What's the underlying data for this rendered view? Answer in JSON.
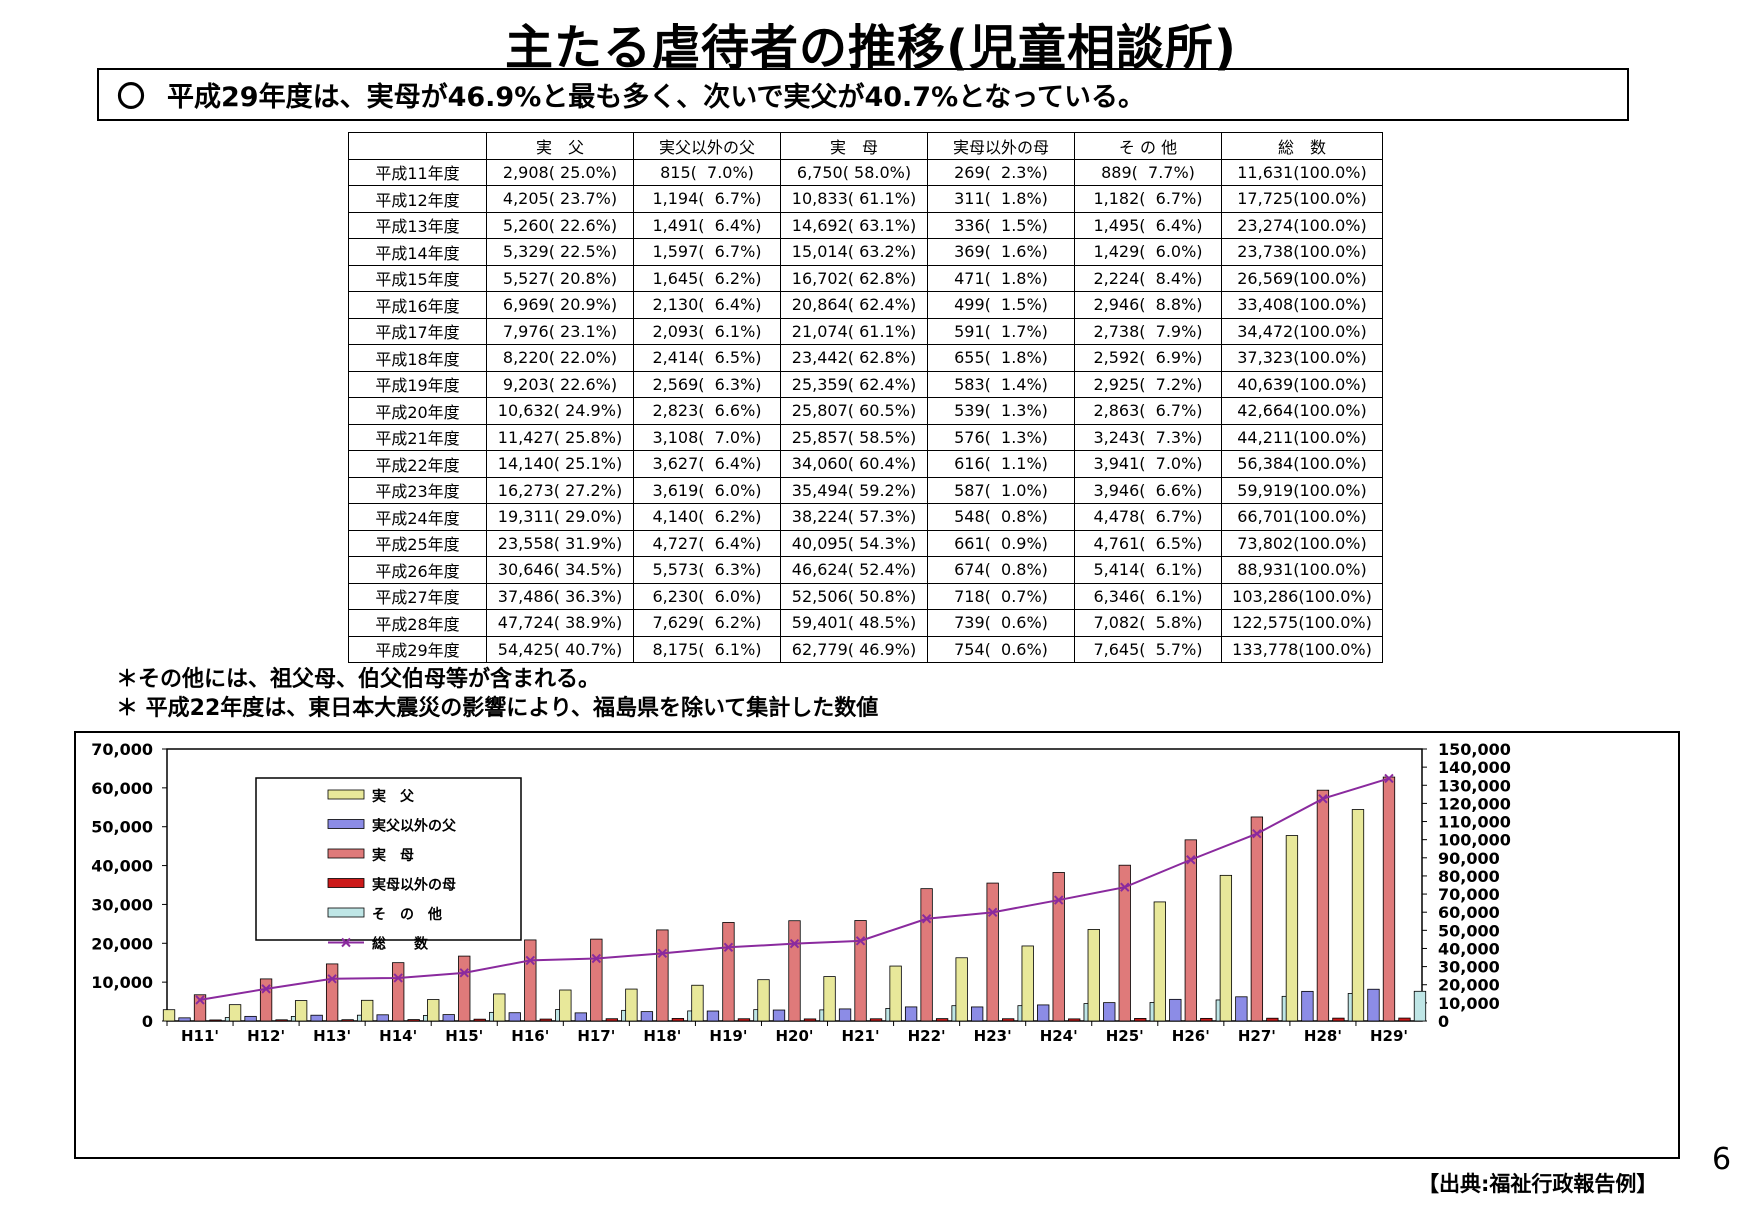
{
  "title": "主たる虐待者の推移(児童相談所)",
  "summary": {
    "bullet": "〇",
    "text": "平成29年度は、実母が46.9%と最も多く、次いで実父が40.7%となっている。"
  },
  "table": {
    "headers": [
      "",
      "実　父",
      "実父以外の父",
      "実　母",
      "実母以外の母",
      "そ の 他",
      "総　数"
    ],
    "rows": [
      [
        "平成11年度",
        "2,908( 25.0%)",
        "815(  7.0%)",
        "6,750( 58.0%)",
        "269(  2.3%)",
        "889(  7.7%)",
        "11,631(100.0%)"
      ],
      [
        "平成12年度",
        "4,205( 23.7%)",
        "1,194(  6.7%)",
        "10,833( 61.1%)",
        "311(  1.8%)",
        "1,182(  6.7%)",
        "17,725(100.0%)"
      ],
      [
        "平成13年度",
        "5,260( 22.6%)",
        "1,491(  6.4%)",
        "14,692( 63.1%)",
        "336(  1.5%)",
        "1,495(  6.4%)",
        "23,274(100.0%)"
      ],
      [
        "平成14年度",
        "5,329( 22.5%)",
        "1,597(  6.7%)",
        "15,014( 63.2%)",
        "369(  1.6%)",
        "1,429(  6.0%)",
        "23,738(100.0%)"
      ],
      [
        "平成15年度",
        "5,527( 20.8%)",
        "1,645(  6.2%)",
        "16,702( 62.8%)",
        "471(  1.8%)",
        "2,224(  8.4%)",
        "26,569(100.0%)"
      ],
      [
        "平成16年度",
        "6,969( 20.9%)",
        "2,130(  6.4%)",
        "20,864( 62.4%)",
        "499(  1.5%)",
        "2,946(  8.8%)",
        "33,408(100.0%)"
      ],
      [
        "平成17年度",
        "7,976( 23.1%)",
        "2,093(  6.1%)",
        "21,074( 61.1%)",
        "591(  1.7%)",
        "2,738(  7.9%)",
        "34,472(100.0%)"
      ],
      [
        "平成18年度",
        "8,220( 22.0%)",
        "2,414(  6.5%)",
        "23,442( 62.8%)",
        "655(  1.8%)",
        "2,592(  6.9%)",
        "37,323(100.0%)"
      ],
      [
        "平成19年度",
        "9,203( 22.6%)",
        "2,569(  6.3%)",
        "25,359( 62.4%)",
        "583(  1.4%)",
        "2,925(  7.2%)",
        "40,639(100.0%)"
      ],
      [
        "平成20年度",
        "10,632( 24.9%)",
        "2,823(  6.6%)",
        "25,807( 60.5%)",
        "539(  1.3%)",
        "2,863(  6.7%)",
        "42,664(100.0%)"
      ],
      [
        "平成21年度",
        "11,427( 25.8%)",
        "3,108(  7.0%)",
        "25,857( 58.5%)",
        "576(  1.3%)",
        "3,243(  7.3%)",
        "44,211(100.0%)"
      ],
      [
        "平成22年度",
        "14,140( 25.1%)",
        "3,627(  6.4%)",
        "34,060( 60.4%)",
        "616(  1.1%)",
        "3,941(  7.0%)",
        "56,384(100.0%)"
      ],
      [
        "平成23年度",
        "16,273( 27.2%)",
        "3,619(  6.0%)",
        "35,494( 59.2%)",
        "587(  1.0%)",
        "3,946(  6.6%)",
        "59,919(100.0%)"
      ],
      [
        "平成24年度",
        "19,311( 29.0%)",
        "4,140(  6.2%)",
        "38,224( 57.3%)",
        "548(  0.8%)",
        "4,478(  6.7%)",
        "66,701(100.0%)"
      ],
      [
        "平成25年度",
        "23,558( 31.9%)",
        "4,727(  6.4%)",
        "40,095( 54.3%)",
        "661(  0.9%)",
        "4,761(  6.5%)",
        "73,802(100.0%)"
      ],
      [
        "平成26年度",
        "30,646( 34.5%)",
        "5,573(  6.3%)",
        "46,624( 52.4%)",
        "674(  0.8%)",
        "5,414(  6.1%)",
        "88,931(100.0%)"
      ],
      [
        "平成27年度",
        "37,486( 36.3%)",
        "6,230(  6.0%)",
        "52,506( 50.8%)",
        "718(  0.7%)",
        "6,346(  6.1%)",
        "103,286(100.0%)"
      ],
      [
        "平成28年度",
        "47,724( 38.9%)",
        "7,629(  6.2%)",
        "59,401( 48.5%)",
        "739(  0.6%)",
        "7,082(  5.8%)",
        "122,575(100.0%)"
      ],
      [
        "平成29年度",
        "54,425( 40.7%)",
        "8,175(  6.1%)",
        "62,779( 46.9%)",
        "754(  0.6%)",
        "7,645(  5.7%)",
        "133,778(100.0%)"
      ]
    ]
  },
  "notes": [
    "＊その他には、祖父母、伯父伯母等が含まれる。",
    "＊ 平成22年度は、東日本大震災の影響により、福島県を除いて集計した数値"
  ],
  "chart_data": {
    "type": "bar",
    "categories": [
      "H11'",
      "H12'",
      "H13'",
      "H14'",
      "H15'",
      "H16'",
      "H17'",
      "H18'",
      "H19'",
      "H20'",
      "H21'",
      "H22'",
      "H23'",
      "H24'",
      "H25'",
      "H26'",
      "H27'",
      "H28'",
      "H29'"
    ],
    "series": [
      {
        "name": "実　父",
        "kind": "bar",
        "color": "#e8e89a",
        "values": [
          2908,
          4205,
          5260,
          5329,
          5527,
          6969,
          7976,
          8220,
          9203,
          10632,
          11427,
          14140,
          16273,
          19311,
          23558,
          30646,
          37486,
          47724,
          54425
        ]
      },
      {
        "name": "実父以外の父",
        "kind": "bar",
        "color": "#8c8ce6",
        "values": [
          815,
          1194,
          1491,
          1597,
          1645,
          2130,
          2093,
          2414,
          2569,
          2823,
          3108,
          3627,
          3619,
          4140,
          4727,
          5573,
          6230,
          7629,
          8175
        ]
      },
      {
        "name": "実　母",
        "kind": "bar",
        "color": "#df7a7a",
        "values": [
          6750,
          10833,
          14692,
          15014,
          16702,
          20864,
          21074,
          23442,
          25359,
          25807,
          25857,
          34060,
          35494,
          38224,
          40095,
          46624,
          52506,
          59401,
          62779
        ]
      },
      {
        "name": "実母以外の母",
        "kind": "bar",
        "color": "#cc1a1a",
        "values": [
          269,
          311,
          336,
          369,
          471,
          499,
          591,
          655,
          583,
          539,
          576,
          616,
          587,
          548,
          661,
          674,
          718,
          739,
          754
        ]
      },
      {
        "name": "そ　の　他",
        "kind": "bar",
        "color": "#bfe6e6",
        "values": [
          889,
          1182,
          1495,
          1429,
          2224,
          2946,
          2738,
          2592,
          2925,
          2863,
          3243,
          3941,
          3946,
          4478,
          4761,
          5414,
          6346,
          7082,
          7645
        ]
      },
      {
        "name": "総　　数",
        "kind": "line",
        "axis": "right",
        "color": "#8a2a9e",
        "values": [
          11631,
          17725,
          23274,
          23738,
          26569,
          33408,
          34472,
          37323,
          40639,
          42664,
          44211,
          56384,
          59919,
          66701,
          73802,
          88931,
          103286,
          122575,
          133778
        ]
      }
    ],
    "ylim": [
      0,
      70000
    ],
    "y_ticks": [
      "0",
      "10,000",
      "20,000",
      "30,000",
      "40,000",
      "50,000",
      "60,000",
      "70,000"
    ],
    "y2lim": [
      0,
      150000
    ],
    "y2_ticks": [
      "0",
      "10,000",
      "20,000",
      "30,000",
      "40,000",
      "50,000",
      "60,000",
      "70,000",
      "80,000",
      "90,000",
      "100,000",
      "110,000",
      "120,000",
      "130,000",
      "140,000",
      "150,000"
    ],
    "legend_position": "top-left",
    "grid": false
  },
  "page_number": "6",
  "source": "【出典:福祉行政報告例】"
}
